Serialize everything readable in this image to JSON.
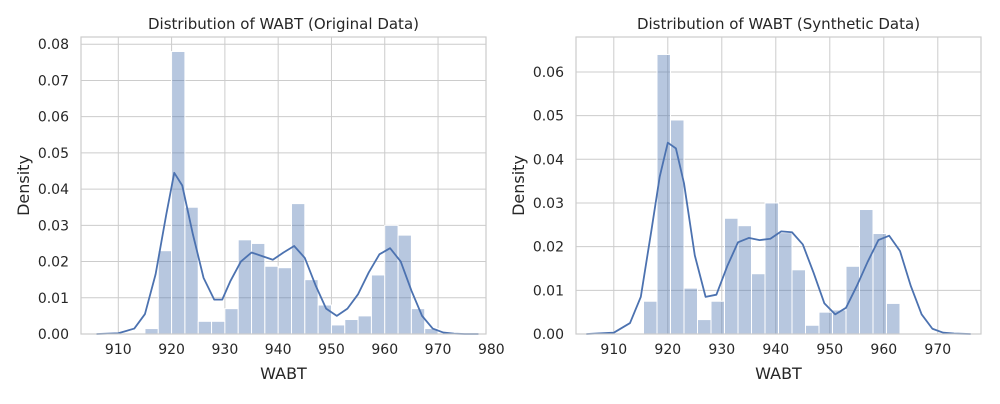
{
  "chart_data": [
    {
      "type": "bar",
      "title": "Distribution of WABT (Original Data)",
      "xlabel": "WABT",
      "ylabel": "Density",
      "xlim": [
        903,
        979
      ],
      "ylim": [
        0,
        0.082
      ],
      "xticks": [
        910,
        920,
        930,
        940,
        950,
        960,
        970,
        980
      ],
      "yticks": [
        0.0,
        0.01,
        0.02,
        0.03,
        0.04,
        0.05,
        0.06,
        0.07,
        0.08
      ],
      "ytick_labels": [
        "0.00",
        "0.01",
        "0.02",
        "0.03",
        "0.04",
        "0.05",
        "0.06",
        "0.07",
        "0.08"
      ],
      "grid": true,
      "bar_color": "#4c72b0",
      "line_color": "#4c72b0",
      "bins": [
        {
          "x0": 915.0,
          "x1": 917.5,
          "density": 0.0015
        },
        {
          "x0": 917.5,
          "x1": 920.0,
          "density": 0.023
        },
        {
          "x0": 920.0,
          "x1": 922.5,
          "density": 0.078
        },
        {
          "x0": 922.5,
          "x1": 925.0,
          "density": 0.035
        },
        {
          "x0": 925.0,
          "x1": 927.5,
          "density": 0.0035
        },
        {
          "x0": 927.5,
          "x1": 930.0,
          "density": 0.0035
        },
        {
          "x0": 930.0,
          "x1": 932.5,
          "density": 0.007
        },
        {
          "x0": 932.5,
          "x1": 935.0,
          "density": 0.026
        },
        {
          "x0": 935.0,
          "x1": 937.5,
          "density": 0.025
        },
        {
          "x0": 937.5,
          "x1": 940.0,
          "density": 0.0187
        },
        {
          "x0": 940.0,
          "x1": 942.5,
          "density": 0.0183
        },
        {
          "x0": 942.5,
          "x1": 945.0,
          "density": 0.036
        },
        {
          "x0": 945.0,
          "x1": 947.5,
          "density": 0.015
        },
        {
          "x0": 947.5,
          "x1": 950.0,
          "density": 0.008
        },
        {
          "x0": 950.0,
          "x1": 952.5,
          "density": 0.0025
        },
        {
          "x0": 952.5,
          "x1": 955.0,
          "density": 0.004
        },
        {
          "x0": 955.0,
          "x1": 957.5,
          "density": 0.005
        },
        {
          "x0": 957.5,
          "x1": 960.0,
          "density": 0.0163
        },
        {
          "x0": 960.0,
          "x1": 962.5,
          "density": 0.03
        },
        {
          "x0": 962.5,
          "x1": 965.0,
          "density": 0.0273
        },
        {
          "x0": 965.0,
          "x1": 967.5,
          "density": 0.007
        },
        {
          "x0": 967.5,
          "x1": 970.0,
          "density": 0.0015
        }
      ],
      "kde": {
        "x": [
          906,
          910,
          913,
          915,
          917,
          919,
          920.5,
          922,
          924,
          926,
          928,
          929.5,
          931,
          933,
          935,
          937,
          939,
          941,
          943,
          945,
          947,
          949,
          951,
          953,
          955,
          957,
          959,
          961,
          963,
          965,
          967,
          969,
          971,
          973,
          975,
          977.5
        ],
        "y": [
          0.0,
          0.0002,
          0.0015,
          0.0055,
          0.0165,
          0.033,
          0.0445,
          0.041,
          0.0275,
          0.0155,
          0.0095,
          0.0095,
          0.0145,
          0.02,
          0.0225,
          0.0215,
          0.0205,
          0.0225,
          0.0243,
          0.021,
          0.0135,
          0.007,
          0.005,
          0.007,
          0.011,
          0.017,
          0.022,
          0.0237,
          0.02,
          0.012,
          0.005,
          0.0015,
          0.0004,
          0.0001,
          0.0,
          0.0
        ]
      }
    },
    {
      "type": "bar",
      "title": "Distribution of WABT (Synthetic Data)",
      "xlabel": "WABT",
      "ylabel": "Density",
      "xlim": [
        903,
        978
      ],
      "ylim": [
        0,
        0.068
      ],
      "xticks": [
        910,
        920,
        930,
        940,
        950,
        960,
        970
      ],
      "yticks": [
        0.0,
        0.01,
        0.02,
        0.03,
        0.04,
        0.05,
        0.06
      ],
      "ytick_labels": [
        "0.00",
        "0.01",
        "0.02",
        "0.03",
        "0.04",
        "0.05",
        "0.06"
      ],
      "grid": true,
      "bar_color": "#4c72b0",
      "line_color": "#4c72b0",
      "bins": [
        {
          "x0": 915.5,
          "x1": 918.0,
          "density": 0.0075
        },
        {
          "x0": 918.0,
          "x1": 920.5,
          "density": 0.064
        },
        {
          "x0": 920.5,
          "x1": 923.0,
          "density": 0.049
        },
        {
          "x0": 923.0,
          "x1": 925.5,
          "density": 0.0105
        },
        {
          "x0": 925.5,
          "x1": 928.0,
          "density": 0.0033
        },
        {
          "x0": 928.0,
          "x1": 930.5,
          "density": 0.0075
        },
        {
          "x0": 930.5,
          "x1": 933.0,
          "density": 0.0265
        },
        {
          "x0": 933.0,
          "x1": 935.5,
          "density": 0.0248
        },
        {
          "x0": 935.5,
          "x1": 938.0,
          "density": 0.0138
        },
        {
          "x0": 938.0,
          "x1": 940.5,
          "density": 0.03
        },
        {
          "x0": 940.5,
          "x1": 943.0,
          "density": 0.0232
        },
        {
          "x0": 943.0,
          "x1": 945.5,
          "density": 0.0147
        },
        {
          "x0": 945.5,
          "x1": 948.0,
          "density": 0.002
        },
        {
          "x0": 948.0,
          "x1": 950.5,
          "density": 0.005
        },
        {
          "x0": 950.5,
          "x1": 953.0,
          "density": 0.0055
        },
        {
          "x0": 953.0,
          "x1": 955.5,
          "density": 0.0155
        },
        {
          "x0": 955.5,
          "x1": 958.0,
          "density": 0.0285
        },
        {
          "x0": 958.0,
          "x1": 960.5,
          "density": 0.023
        },
        {
          "x0": 960.5,
          "x1": 963.0,
          "density": 0.007
        }
      ],
      "kde": {
        "x": [
          905,
          910,
          913,
          915,
          917,
          918.5,
          920,
          921.5,
          923,
          925,
          927,
          929,
          931,
          933,
          935,
          937,
          939,
          941,
          943,
          945,
          947,
          949,
          951,
          953,
          955,
          957,
          959,
          961,
          963,
          965,
          967,
          969,
          971,
          973,
          976
        ],
        "y": [
          0.0,
          0.0003,
          0.0025,
          0.0085,
          0.024,
          0.036,
          0.0438,
          0.0425,
          0.0345,
          0.018,
          0.0085,
          0.009,
          0.0155,
          0.021,
          0.022,
          0.0215,
          0.0218,
          0.0235,
          0.0233,
          0.0205,
          0.014,
          0.007,
          0.0045,
          0.006,
          0.011,
          0.0165,
          0.0215,
          0.0225,
          0.019,
          0.011,
          0.0045,
          0.0012,
          0.0003,
          0.0001,
          0.0
        ]
      }
    }
  ]
}
